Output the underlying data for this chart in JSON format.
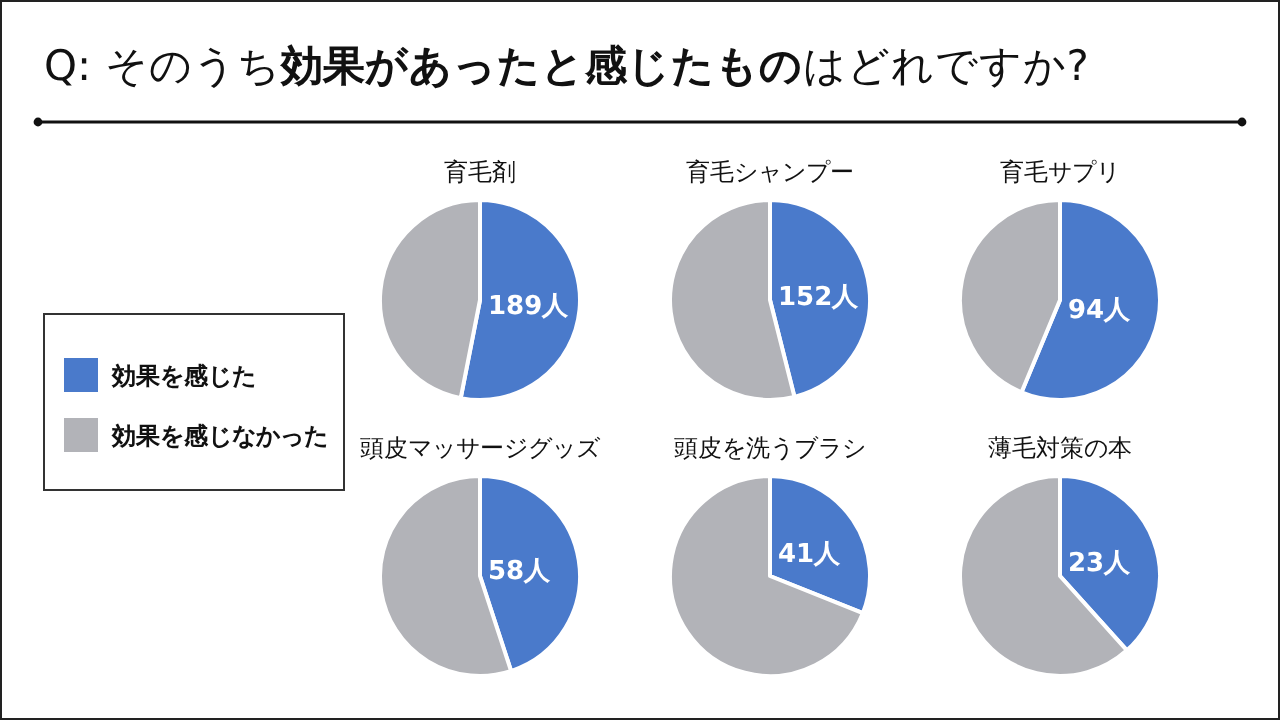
{
  "chart_data": [
    {
      "type": "pie",
      "title": "Q: そのうち**効果があったと感じたもの**はどれですか?",
      "subtitle": "育毛剤",
      "categories": [
        "効果を感じた",
        "効果を感じなかった"
      ],
      "values": [
        189,
        167
      ],
      "colors": [
        "#4a7acb",
        "#b2b3b8"
      ],
      "value_labels": [
        "189人",
        null
      ],
      "legend": "left"
    },
    {
      "type": "pie",
      "subtitle": "育毛シャンプー",
      "values": [
        152,
        178
      ],
      "colors": [
        "#4a7acb",
        "#b2b3b8"
      ],
      "value_labels": [
        "152人",
        null
      ]
    },
    {
      "type": "pie",
      "subtitle": "育毛サプリ",
      "values": [
        94,
        73
      ],
      "colors": [
        "#4a7acb",
        "#b2b3b8"
      ],
      "value_labels": [
        "94人",
        null
      ]
    },
    {
      "type": "pie",
      "subtitle": "頭皮マッサージグッズ",
      "values": [
        58,
        71
      ],
      "colors": [
        "#4a7acb",
        "#b2b3b8"
      ],
      "value_labels": [
        "58人",
        null
      ]
    },
    {
      "type": "pie",
      "subtitle": "頭皮を洗うブラシ",
      "values": [
        41,
        91
      ],
      "colors": [
        "#4a7acb",
        "#b2b3b8"
      ],
      "value_labels": [
        "41人",
        null
      ]
    },
    {
      "type": "pie",
      "subtitle": "薄毛対策の本",
      "values": [
        23,
        37
      ],
      "colors": [
        "#4a7acb",
        "#b2b3b8"
      ],
      "value_labels": [
        "23人",
        null
      ]
    }
  ]
}
